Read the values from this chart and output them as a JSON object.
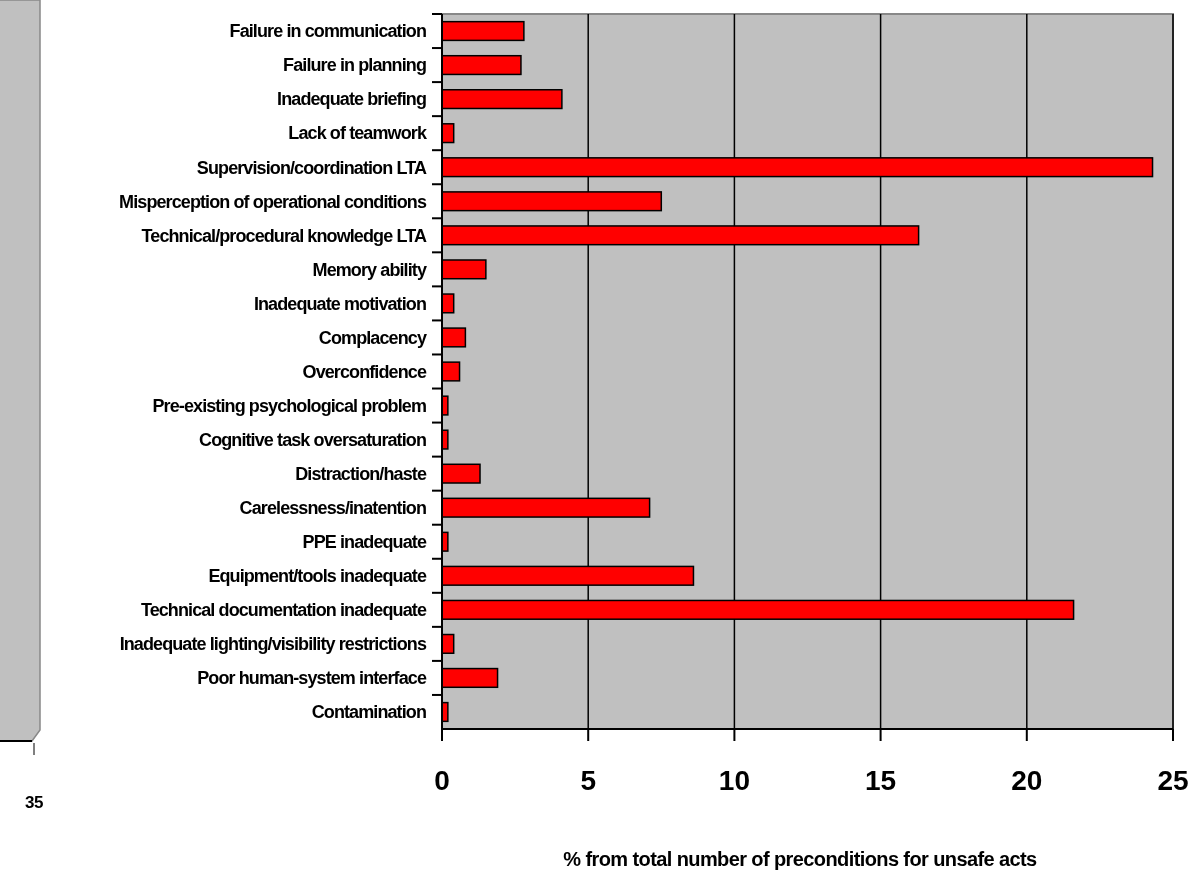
{
  "chart_data": {
    "type": "bar",
    "orientation": "horizontal",
    "xlabel": "% from total number of preconditions for unsafe acts",
    "categories": [
      "Failure in communication",
      "Failure in planning",
      "Inadequate briefing",
      "Lack of teamwork",
      "Supervision/coordination LTA",
      "Misperception of operational conditions",
      "Technical/procedural knowledge LTA",
      "Memory ability",
      "Inadequate motivation",
      "Complacency",
      "Overconfidence",
      "Pre-existing psychological problem",
      "Cognitive task oversaturation",
      "Distraction/haste",
      "Carelessness/inatention",
      "PPE inadequate",
      "Equipment/tools inadequate",
      "Technical documentation inadequate",
      "Inadequate lighting/visibility restrictions",
      "Poor human-system interface",
      "Contamination"
    ],
    "values": [
      2.8,
      2.7,
      4.1,
      0.4,
      24.3,
      7.5,
      16.3,
      1.5,
      0.4,
      0.8,
      0.6,
      0.2,
      0.2,
      1.3,
      7.1,
      0.2,
      8.6,
      21.6,
      0.4,
      1.9,
      0.2
    ],
    "color": "#ff0000",
    "xlim": [
      0,
      25
    ],
    "xticks": [
      0,
      5,
      10,
      15,
      20,
      25
    ],
    "grid": "x",
    "annotations": [
      "35"
    ]
  }
}
